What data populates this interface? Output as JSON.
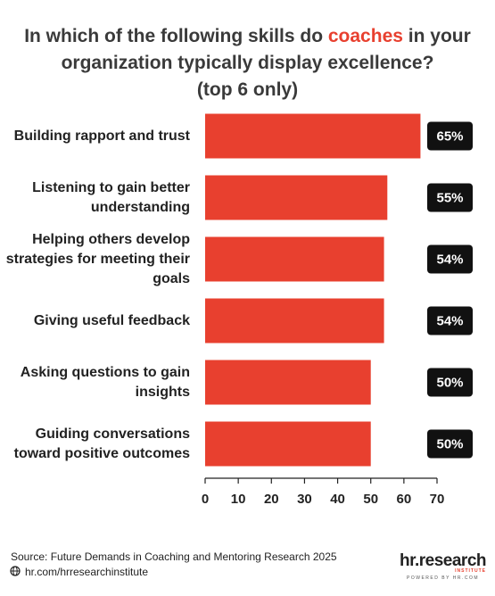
{
  "chart_data": {
    "type": "barh",
    "title_start": "In which of the following skills do",
    "title_highlight": "coaches",
    "title_end": "in your organization typically display excellence?",
    "subtitle": "(top 6 only)",
    "categories": [
      "Building rapport and trust",
      "Listening to gain better understanding",
      "Helping others develop strategies for meeting their goals",
      "Giving useful feedback",
      "Asking questions to gain insights",
      "Guiding conversations toward positive outcomes"
    ],
    "values": [
      65,
      55,
      54,
      54,
      50,
      50
    ],
    "value_labels": [
      "65%",
      "55%",
      "54%",
      "54%",
      "50%",
      "50%"
    ],
    "color": "#e8402f",
    "xlim": [
      0,
      70
    ],
    "xticks": [
      0,
      10,
      20,
      30,
      40,
      50,
      60,
      70
    ],
    "grid": false
  },
  "footer": {
    "source": "Source:  Future Demands in Coaching and Mentoring Research 2025",
    "url": "hr.com/hrresearchinstitute",
    "logo": "hr.research",
    "logo_sub": "INSTITUTE",
    "logo_powered": "POWERED BY HR.COM"
  }
}
